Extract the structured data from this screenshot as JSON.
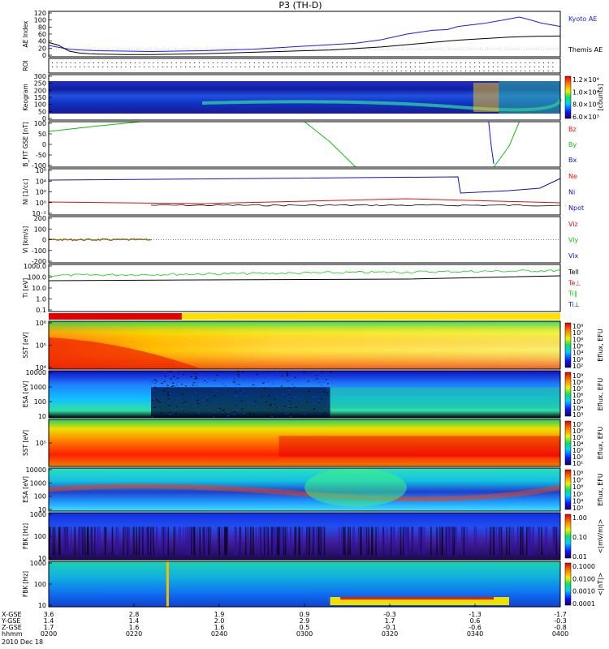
{
  "chart_data": {
    "type": "line",
    "title": "P3 (TH-D)",
    "date_label": "2010 Dec 18",
    "time_ticks": [
      "0200",
      "0220",
      "0240",
      "0300",
      "0320",
      "0340",
      "0400"
    ],
    "ephemeris": {
      "labels": [
        "X-GSE",
        "Y-GSE",
        "Z-GSE",
        "hhmm"
      ],
      "x": [
        "3.6",
        "2.8",
        "1.9",
        "0.9",
        "-0.3",
        "-1.3",
        "-1.7"
      ],
      "y": [
        "1.4",
        "1.4",
        "2.0",
        "2.9",
        "1.7",
        "0.6",
        "-0.3"
      ],
      "z": [
        "1.7",
        "1.6",
        "1.6",
        "0.5",
        "-0.1",
        "-0.6",
        "-0.8"
      ]
    },
    "panels": [
      {
        "id": "ae",
        "ylabel": "AE Index",
        "ylim": [
          0,
          120
        ],
        "yticks": [
          "120",
          "100",
          "80",
          "60",
          "40",
          "20",
          "0"
        ],
        "legend": [
          "Kyoto AE",
          "Themis AE"
        ],
        "series": [
          {
            "name": "Kyoto AE",
            "color": "#1a1aff",
            "x": [
              0,
              2,
              4,
              6,
              8,
              10,
              15,
              20,
              25,
              30,
              35,
              40,
              45,
              50,
              55,
              60,
              65,
              70,
              75,
              78,
              80,
              83,
              85,
              88,
              90,
              92,
              94,
              96,
              98,
              100
            ],
            "y": [
              30,
              25,
              20,
              18,
              17,
              16,
              15,
              14,
              15,
              16,
              18,
              20,
              24,
              28,
              32,
              36,
              45,
              60,
              70,
              72,
              80,
              85,
              88,
              95,
              100,
              105,
              98,
              90,
              85,
              80
            ]
          },
          {
            "name": "Themis AE",
            "color": "#000000",
            "x": [
              0,
              2,
              4,
              6,
              8,
              10,
              15,
              20,
              25,
              30,
              35,
              40,
              45,
              50,
              55,
              60,
              65,
              70,
              75,
              80,
              85,
              90,
              95,
              100
            ],
            "y": [
              38,
              30,
              15,
              10,
              8,
              7,
              6,
              6,
              7,
              8,
              10,
              12,
              14,
              16,
              18,
              22,
              26,
              32,
              38,
              44,
              48,
              52,
              54,
              55
            ]
          }
        ]
      },
      {
        "id": "roi",
        "ylabel": "ROI",
        "type": "dots"
      },
      {
        "id": "keogram",
        "ylabel": "Keogram",
        "ylim": [
          0,
          300
        ],
        "yticks": [
          "300",
          "250",
          "200",
          "150",
          "100",
          "50",
          "0"
        ],
        "colorbar": {
          "unit": "[counts]",
          "ticks": [
            "1.2×10⁴",
            "1.0×10⁴",
            "8.0×10³",
            "6.0×10³"
          ]
        }
      },
      {
        "id": "bfield",
        "ylabel": "B_FIT GSE [nT]",
        "ylim": [
          -100,
          100
        ],
        "yticks": [
          "100",
          "50",
          "0",
          "-50",
          "-100"
        ],
        "legend": [
          "Bz",
          "By",
          "Bx"
        ],
        "legend_colors": [
          "#e01010",
          "#10c010",
          "#1010e0"
        ]
      },
      {
        "id": "density",
        "ylabel": "Ni [1/cc]",
        "yticks": [
          "10⁸",
          "10⁴",
          "10²",
          "10⁰",
          "10⁻²"
        ],
        "legend": [
          "Ne",
          "Ni",
          "Npot"
        ],
        "legend_colors": [
          "#e01010",
          "#1010c0",
          "#1010c0"
        ]
      },
      {
        "id": "velocity",
        "ylabel": "Vi [km/s]",
        "ylim": [
          -200,
          200
        ],
        "yticks": [
          "200",
          "100",
          "0",
          "-100",
          "-200"
        ],
        "legend": [
          "Viz",
          "Viy",
          "Vix"
        ],
        "legend_colors": [
          "#e01010",
          "#10c010",
          "#1010e0"
        ]
      },
      {
        "id": "temperature",
        "ylabel": "Ti [eV]",
        "yticks": [
          "1000.0",
          "100.0",
          "10.0",
          "1.0",
          "0.1"
        ],
        "legend": [
          "Tell",
          "Te⊥",
          "Ti∥",
          "Ti⊥"
        ],
        "legend_colors": [
          "#000000",
          "#e01010",
          "#10c010",
          "#1010e0"
        ]
      },
      {
        "id": "sst_e",
        "ylabel": "SST [eV]",
        "yticks": [
          "10⁶",
          "10⁵",
          "10⁴"
        ],
        "colorbar": {
          "unit": "Eflux, EFU",
          "ticks": [
            "10⁸",
            "10⁷",
            "10⁶",
            "10⁵",
            "10⁴",
            "10³",
            "10²"
          ]
        }
      },
      {
        "id": "esa_e",
        "ylabel": "ESA [eV]",
        "yticks": [
          "10000",
          "1000",
          "100",
          "10"
        ],
        "colorbar": {
          "unit": "Eflux, EFU",
          "ticks": [
            "10⁹",
            "10⁸",
            "10⁷",
            "10⁶",
            "10⁵",
            "10⁴",
            "10³"
          ]
        }
      },
      {
        "id": "sst_i",
        "ylabel": "SST [eV]",
        "yticks": [
          "10⁵"
        ],
        "colorbar": {
          "unit": "Eflux, EFU",
          "ticks": [
            "10⁷",
            "10⁶",
            "10⁵",
            "10⁴",
            "10³",
            "10²",
            "10¹"
          ]
        }
      },
      {
        "id": "esa_i",
        "ylabel": "ESA [eV]",
        "yticks": [
          "10000",
          "1000",
          "100",
          "10"
        ],
        "colorbar": {
          "unit": "Eflux, EFU",
          "ticks": [
            "10⁸",
            "10⁷",
            "10⁶",
            "10⁵",
            "10⁴",
            "10³"
          ]
        }
      },
      {
        "id": "fbk_e",
        "ylabel": "FBK [Hz]",
        "yticks": [
          "1000",
          "100",
          "10"
        ],
        "colorbar": {
          "unit": "<|mV/m|>",
          "ticks": [
            "1.00",
            "0.10",
            "0.01"
          ]
        }
      },
      {
        "id": "fbk_b",
        "ylabel": "FBK [Hz]",
        "yticks": [
          "1000",
          "100",
          "10"
        ],
        "colorbar": {
          "unit": "<|nT|>",
          "ticks": [
            "0.1000",
            "0.0100",
            "0.0010",
            "0.0001"
          ]
        }
      }
    ]
  }
}
